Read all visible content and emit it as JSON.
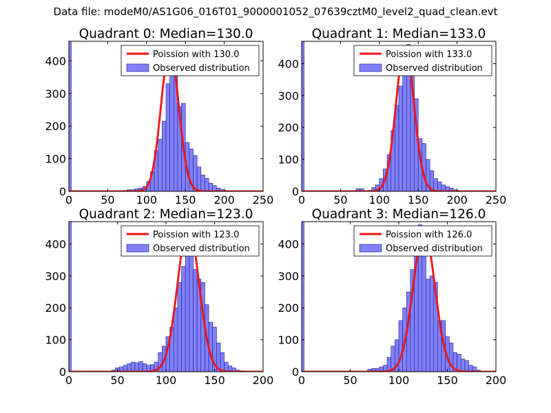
{
  "figure": {
    "suptitle": "Data file: modeM0/AS1G06_016T01_9000001052_07639cztM0_level2_quad_clean.evt"
  },
  "colors": {
    "hist_fill": "#8080f8",
    "hist_edge": "#1a1a8c",
    "poisson_line": "#ee1111",
    "frame": "#000000"
  },
  "chart_data": [
    {
      "type": "bar",
      "title": "Quadrant 0: Median=130.0",
      "xlim": [
        0,
        250
      ],
      "ylim": [
        0,
        460
      ],
      "xticks": [
        0,
        50,
        100,
        150,
        200,
        250
      ],
      "yticks": [
        0,
        100,
        200,
        300,
        400
      ],
      "bin_width": 5,
      "legend": {
        "position": "top-right",
        "line_label": "Poission with 130.0",
        "bar_label": "Observed distribution"
      },
      "poisson_mean": 130.0,
      "poisson_peak": 435,
      "edge_bar": {
        "x": 0,
        "value": 460
      },
      "bin_starts": [
        70,
        75,
        80,
        85,
        90,
        95,
        100,
        105,
        110,
        115,
        120,
        125,
        130,
        135,
        140,
        145,
        150,
        155,
        160,
        165,
        170,
        175,
        180,
        185,
        190,
        195,
        200
      ],
      "values": [
        3,
        5,
        5,
        8,
        10,
        15,
        30,
        60,
        125,
        160,
        215,
        330,
        440,
        355,
        260,
        270,
        150,
        130,
        110,
        75,
        50,
        40,
        25,
        18,
        10,
        5,
        3
      ]
    },
    {
      "type": "bar",
      "title": "Quadrant 1: Median=133.0",
      "xlim": [
        0,
        250
      ],
      "ylim": [
        0,
        470
      ],
      "xticks": [
        0,
        50,
        100,
        150,
        200,
        250
      ],
      "yticks": [
        0,
        100,
        200,
        300,
        400
      ],
      "bin_width": 5,
      "legend": {
        "position": "top-right",
        "line_label": "Poission with 133.0",
        "bar_label": "Observed distribution"
      },
      "poisson_mean": 133.0,
      "poisson_peak": 455,
      "edge_bar": {
        "x": 0,
        "value": 470
      },
      "bin_starts": [
        70,
        75,
        80,
        85,
        90,
        95,
        100,
        105,
        110,
        115,
        120,
        125,
        130,
        135,
        140,
        145,
        150,
        155,
        160,
        165,
        170,
        175,
        180,
        185,
        190,
        195,
        200
      ],
      "values": [
        8,
        8,
        2,
        3,
        12,
        20,
        40,
        70,
        115,
        190,
        270,
        330,
        400,
        460,
        410,
        290,
        165,
        150,
        100,
        65,
        40,
        30,
        20,
        15,
        10,
        5,
        3
      ]
    },
    {
      "type": "bar",
      "title": "Quadrant 2: Median=123.0",
      "xlim": [
        0,
        200
      ],
      "ylim": [
        0,
        470
      ],
      "xticks": [
        0,
        50,
        100,
        150,
        200
      ],
      "yticks": [
        0,
        100,
        200,
        300,
        400
      ],
      "bin_width": 4,
      "legend": {
        "position": "top-right",
        "line_label": "Poission with 123.0",
        "bar_label": "Observed distribution"
      },
      "poisson_mean": 123.0,
      "poisson_peak": 455,
      "edge_bar": {
        "x": 0,
        "value": 470
      },
      "bin_starts": [
        44,
        48,
        52,
        56,
        60,
        64,
        68,
        72,
        76,
        80,
        84,
        88,
        92,
        96,
        100,
        104,
        108,
        112,
        116,
        120,
        124,
        128,
        132,
        136,
        140,
        144,
        148,
        152,
        156,
        160,
        164,
        168,
        172,
        176,
        180
      ],
      "values": [
        5,
        12,
        15,
        20,
        25,
        30,
        28,
        32,
        25,
        20,
        22,
        30,
        60,
        80,
        110,
        140,
        200,
        280,
        330,
        430,
        380,
        320,
        290,
        280,
        210,
        155,
        140,
        90,
        60,
        30,
        18,
        12,
        5,
        3,
        2
      ]
    },
    {
      "type": "bar",
      "title": "Quadrant 3: Median=126.0",
      "xlim": [
        0,
        200
      ],
      "ylim": [
        0,
        470
      ],
      "xticks": [
        0,
        50,
        100,
        150,
        200
      ],
      "yticks": [
        0,
        100,
        200,
        300,
        400
      ],
      "bin_width": 4,
      "legend": {
        "position": "top-right",
        "line_label": "Poission with 126.0",
        "bar_label": "Observed distribution"
      },
      "poisson_mean": 126.0,
      "poisson_peak": 440,
      "edge_bar": {
        "x": 0,
        "value": 470
      },
      "bin_starts": [
        68,
        72,
        76,
        80,
        84,
        88,
        92,
        96,
        100,
        104,
        108,
        112,
        116,
        120,
        124,
        128,
        132,
        136,
        140,
        144,
        148,
        152,
        156,
        160,
        164,
        168,
        172,
        176,
        180
      ],
      "values": [
        8,
        10,
        10,
        15,
        20,
        45,
        80,
        100,
        160,
        200,
        250,
        320,
        400,
        460,
        380,
        290,
        300,
        280,
        160,
        160,
        110,
        90,
        60,
        55,
        40,
        35,
        20,
        15,
        5
      ]
    }
  ]
}
